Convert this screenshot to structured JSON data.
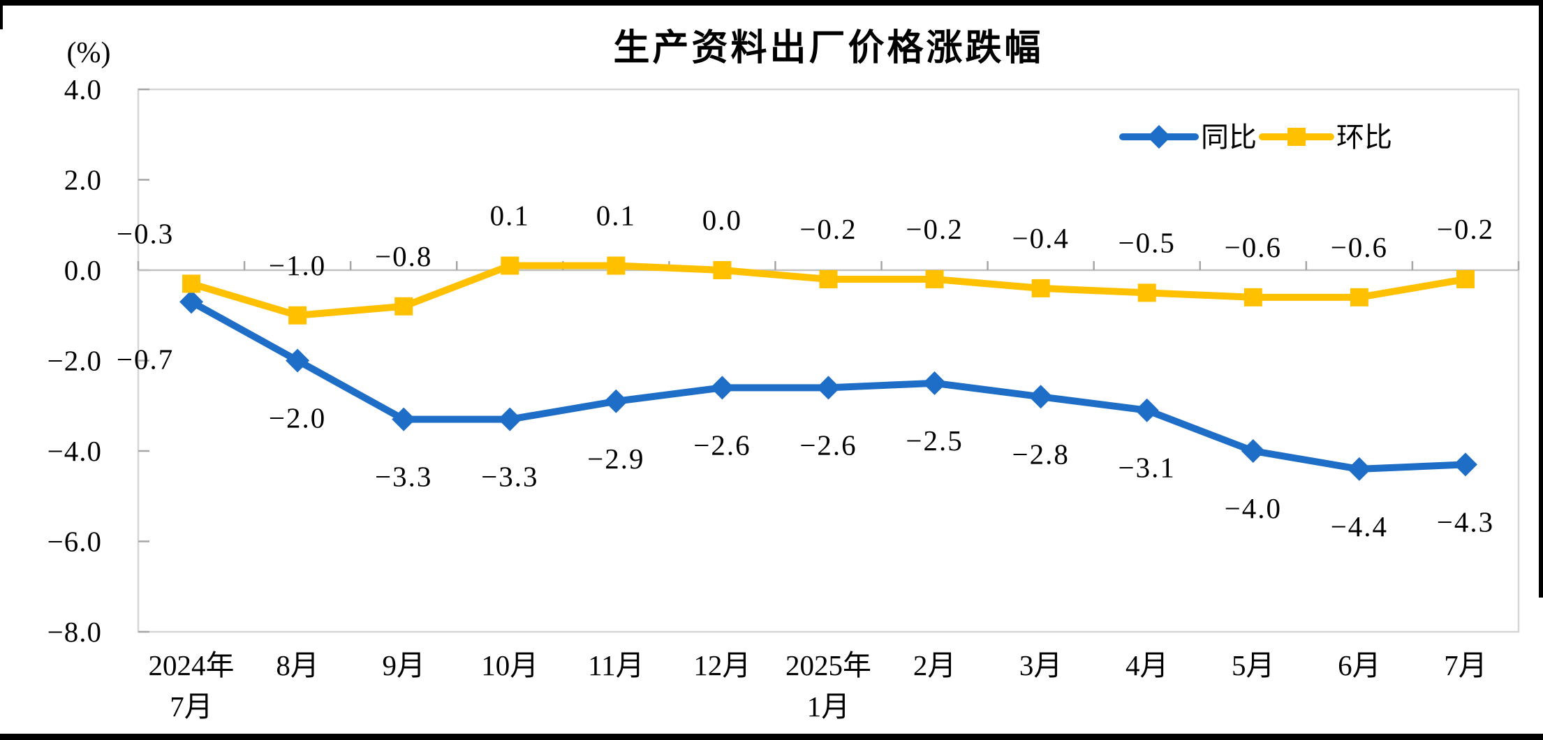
{
  "title": "生产资料出厂价格涨跌幅",
  "y_axis_unit": "(%)",
  "chart_data": {
    "type": "line",
    "title": "生产资料出厂价格涨跌幅",
    "ylabel": "(%)",
    "ylim": [
      -8.0,
      4.0
    ],
    "ytick_step": 2.0,
    "yticks": [
      "4.0",
      "2.0",
      "0.0",
      "-2.0",
      "-4.0",
      "-6.0",
      "-8.0"
    ],
    "grid": false,
    "legend_position": "top-right",
    "categories": [
      [
        "2024年",
        "7月"
      ],
      [
        "8月"
      ],
      [
        "9月"
      ],
      [
        "10月"
      ],
      [
        "11月"
      ],
      [
        "12月"
      ],
      [
        "2025年",
        "1月"
      ],
      [
        "2月"
      ],
      [
        "3月"
      ],
      [
        "4月"
      ],
      [
        "5月"
      ],
      [
        "6月"
      ],
      [
        "7月"
      ]
    ],
    "series": [
      {
        "name": "同比",
        "color": "#1E6EC8",
        "marker": "diamond",
        "label_side": "below",
        "values": [
          -0.7,
          -2.0,
          -3.3,
          -3.3,
          -2.9,
          -2.6,
          -2.6,
          -2.5,
          -2.8,
          -3.1,
          -4.0,
          -4.4,
          -4.3
        ],
        "labels": [
          "-0.7",
          "-2.0",
          "-3.3",
          "-3.3",
          "-2.9",
          "-2.6",
          "-2.6",
          "-2.5",
          "-2.8",
          "-3.1",
          "-4.0",
          "-4.4",
          "-4.3"
        ]
      },
      {
        "name": "环比",
        "color": "#FFC000",
        "marker": "square",
        "label_side": "above",
        "values": [
          -0.3,
          -1.0,
          -0.8,
          0.1,
          0.1,
          0.0,
          -0.2,
          -0.2,
          -0.4,
          -0.5,
          -0.6,
          -0.6,
          -0.2
        ],
        "labels": [
          "-0.3",
          "-1.0",
          "-0.8",
          "0.1",
          "0.1",
          "0.0",
          "-0.2",
          "-0.2",
          "-0.4",
          "-0.5",
          "-0.6",
          "-0.6",
          "-0.2"
        ]
      }
    ],
    "axis_colors": {
      "frame": "#D6D6D6",
      "zero_line": "#C0C0C0",
      "tick": "#A6A6A6",
      "text": "#000000"
    }
  }
}
